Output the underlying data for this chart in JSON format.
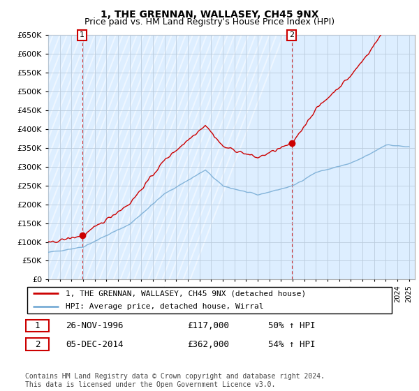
{
  "title": "1, THE GRENNAN, WALLASEY, CH45 9NX",
  "subtitle": "Price paid vs. HM Land Registry's House Price Index (HPI)",
  "ylim": [
    0,
    650000
  ],
  "yticks": [
    0,
    50000,
    100000,
    150000,
    200000,
    250000,
    300000,
    350000,
    400000,
    450000,
    500000,
    550000,
    600000,
    650000
  ],
  "sale1_date": 1996.92,
  "sale1_price": 117000,
  "sale2_date": 2014.92,
  "sale2_price": 362000,
  "hpi_color": "#7aaed6",
  "price_color": "#cc0000",
  "grid_color": "#bbccdd",
  "bg_color": "#ddeeff",
  "annotation_box_color": "#cc0000",
  "legend_label1": "1, THE GRENNAN, WALLASEY, CH45 9NX (detached house)",
  "legend_label2": "HPI: Average price, detached house, Wirral",
  "table_row1": [
    "1",
    "26-NOV-1996",
    "£117,000",
    "50% ↑ HPI"
  ],
  "table_row2": [
    "2",
    "05-DEC-2014",
    "£362,000",
    "54% ↑ HPI"
  ],
  "footnote": "Contains HM Land Registry data © Crown copyright and database right 2024.\nThis data is licensed under the Open Government Licence v3.0.",
  "title_fontsize": 10,
  "subtitle_fontsize": 9
}
